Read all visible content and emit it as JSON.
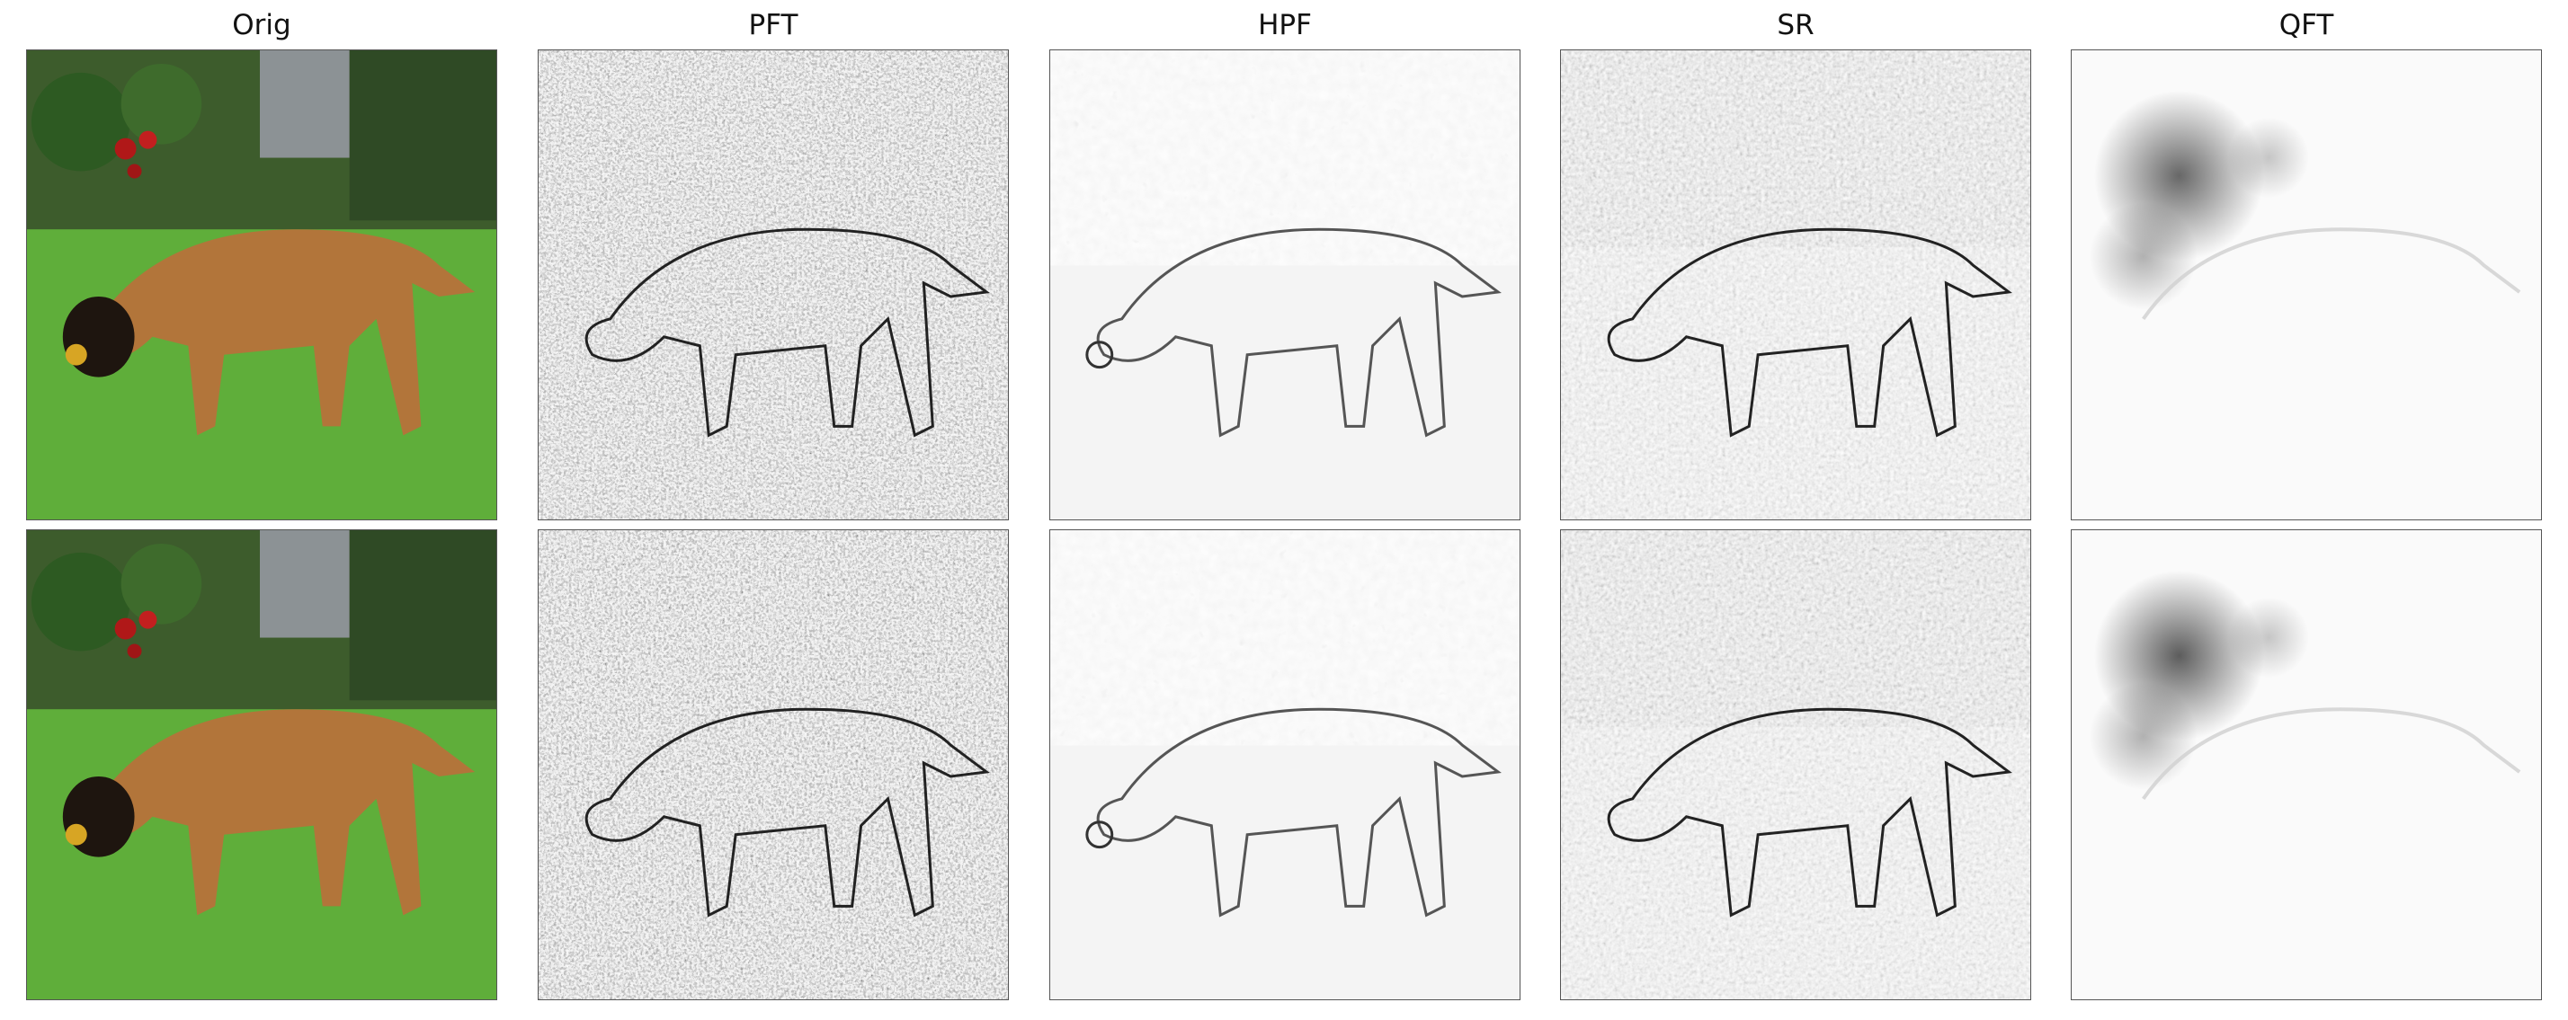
{
  "figure": {
    "columns": [
      {
        "key": "orig",
        "title": "Orig"
      },
      {
        "key": "pft",
        "title": "PFT"
      },
      {
        "key": "hpf",
        "title": "HPF"
      },
      {
        "key": "sr",
        "title": "SR"
      },
      {
        "key": "qft",
        "title": "QFT"
      }
    ]
  }
}
